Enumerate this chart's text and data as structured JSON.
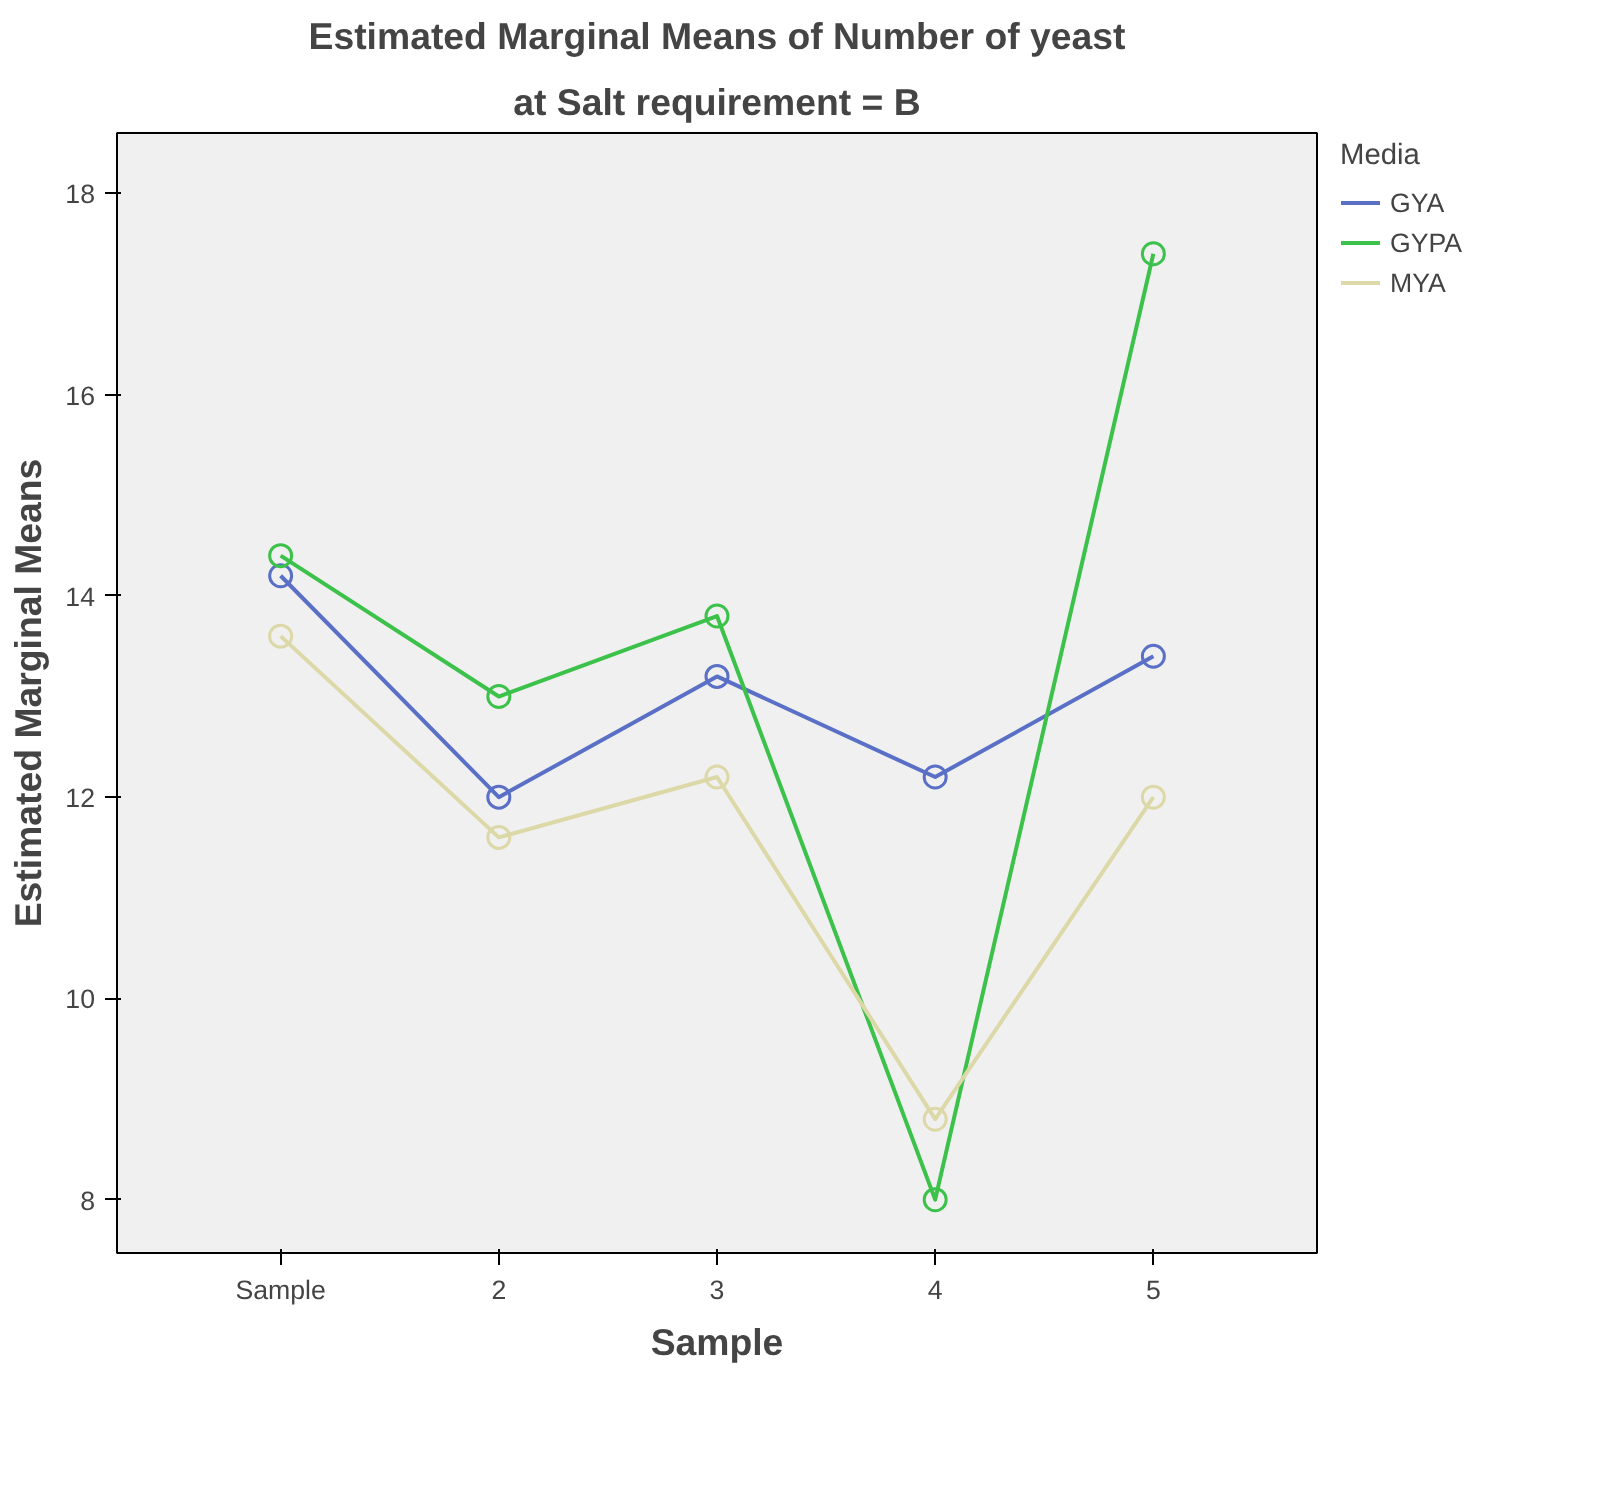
{
  "chart_data": {
    "type": "line",
    "title": "Estimated Marginal Means of Number of yeast",
    "subtitle": "at Salt requirement = B",
    "xlabel": "Sample",
    "ylabel": "Estimated Marginal Means",
    "legend_title": "Media",
    "categories": [
      "Sample",
      "2",
      "3",
      "4",
      "5"
    ],
    "series": [
      {
        "name": "GYA",
        "color": "#5a6fc6",
        "values": [
          14.2,
          12.0,
          13.2,
          12.2,
          13.4
        ]
      },
      {
        "name": "GYPA",
        "color": "#3cc24a",
        "values": [
          14.4,
          13.0,
          13.8,
          8.0,
          17.4
        ]
      },
      {
        "name": "MYA",
        "color": "#ddd8a8",
        "values": [
          13.6,
          11.6,
          12.2,
          8.8,
          12.0
        ]
      }
    ],
    "ylim": [
      7.47,
      18.6
    ],
    "yticks": [
      8,
      10,
      12,
      14,
      16,
      18
    ],
    "grid": false,
    "legend": "right",
    "marker": "circle",
    "line_style": "solid"
  }
}
